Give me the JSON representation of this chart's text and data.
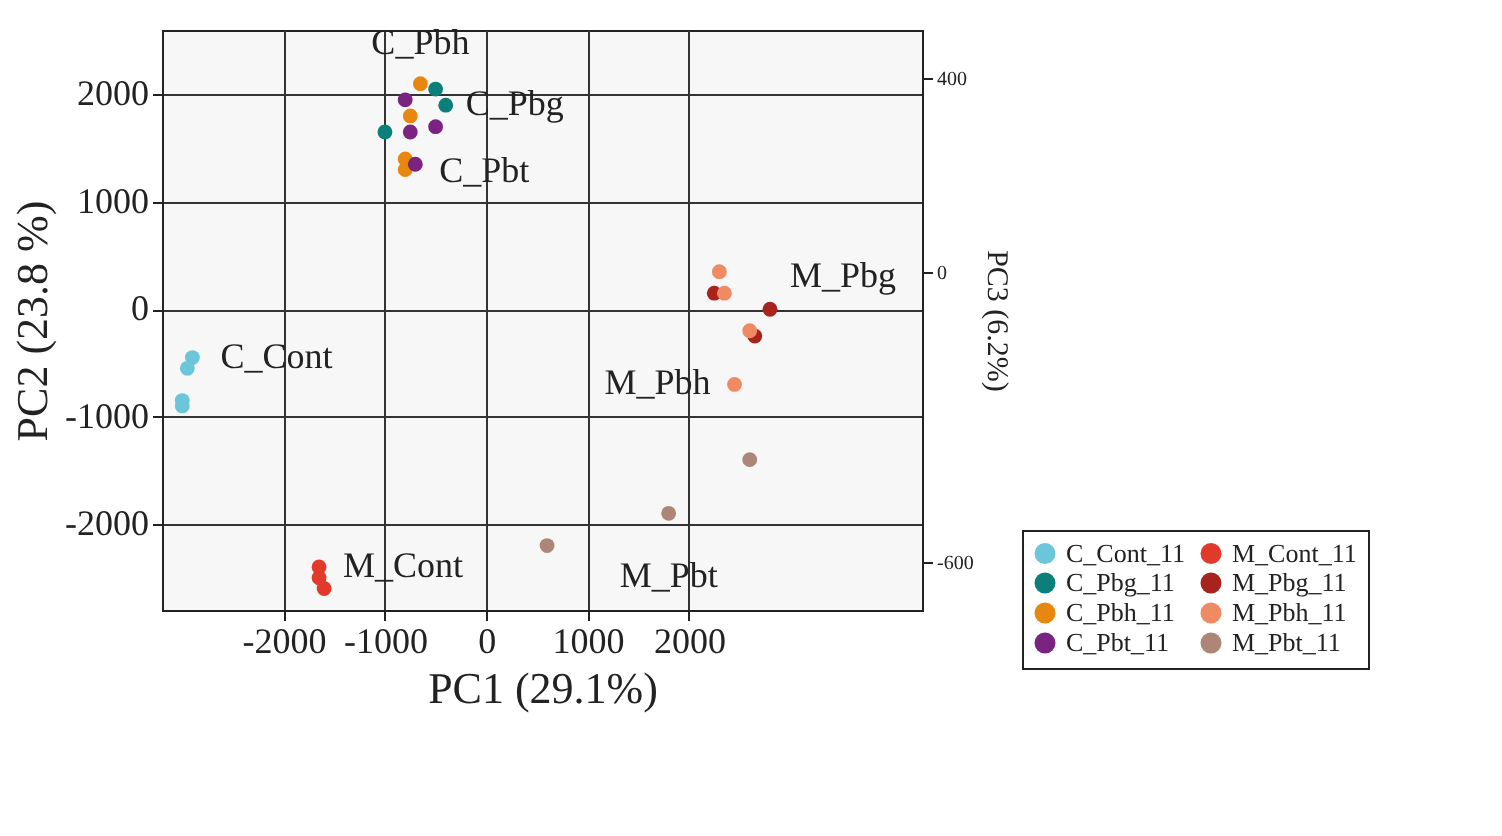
{
  "chart_data": {
    "type": "scatter",
    "xlabel": "PC1 (29.1%)",
    "ylabel": "PC2 (23.8 %)",
    "y2label": "PC3 (6.2%)",
    "xlim": [
      -3200,
      4300
    ],
    "ylim": [
      -2800,
      2600
    ],
    "xticks": [
      -2000,
      -1000,
      0,
      1000,
      2000
    ],
    "yticks": [
      -2000,
      -1000,
      0,
      1000,
      2000
    ],
    "y2lim": [
      -700,
      500
    ],
    "y2ticks": [
      -600,
      0,
      400
    ],
    "grid": true,
    "legend": "bottom right",
    "marker": "circle",
    "series": [
      {
        "name": "C_Cont_11",
        "color": "#6ac6d8",
        "x": [
          -2900,
          -2950,
          -3000,
          -3000
        ],
        "values": [
          -450,
          -550,
          -850,
          -900
        ]
      },
      {
        "name": "C_Pbg_11",
        "color": "#0d7f7a",
        "x": [
          -500,
          -400,
          -1000
        ],
        "values": [
          2050,
          1900,
          1650
        ]
      },
      {
        "name": "C_Pbh_11",
        "color": "#e8870f",
        "x": [
          -650,
          -750,
          -800,
          -800
        ],
        "values": [
          2100,
          1800,
          1400,
          1300
        ]
      },
      {
        "name": "C_Pbt_11",
        "color": "#7b2380",
        "x": [
          -800,
          -750,
          -500,
          -700
        ],
        "values": [
          1950,
          1650,
          1700,
          1350
        ]
      },
      {
        "name": "M_Cont_11",
        "color": "#e23a2a",
        "x": [
          -1650,
          -1650,
          -1600
        ],
        "values": [
          -2400,
          -2500,
          -2600
        ]
      },
      {
        "name": "M_Pbg_11",
        "color": "#a8231c",
        "x": [
          2800,
          2650,
          2250
        ],
        "values": [
          0,
          -250,
          150
        ]
      },
      {
        "name": "M_Pbh_11",
        "color": "#f08a62",
        "x": [
          2300,
          2350,
          2600,
          2450
        ],
        "values": [
          350,
          150,
          -200,
          -700
        ]
      },
      {
        "name": "M_Pbt_11",
        "color": "#ad8677",
        "x": [
          600,
          1800,
          2600
        ],
        "values": [
          -2200,
          -1900,
          -1400
        ]
      }
    ],
    "annotations": [
      {
        "text": "C_Pbh",
        "x": -650,
        "y": 2100
      },
      {
        "text": "C_Pbg",
        "x": -400,
        "y": 1900
      },
      {
        "text": "C_Pbt",
        "x": -700,
        "y": 1350
      },
      {
        "text": "C_Cont",
        "x": -2900,
        "y": -450
      },
      {
        "text": "M_Pbg",
        "x": 2800,
        "y": 0
      },
      {
        "text": "M_Pbh",
        "x": 2450,
        "y": -700
      },
      {
        "text": "M_Cont",
        "x": -1650,
        "y": -2400
      },
      {
        "text": "M_Pbt",
        "x": 1800,
        "y": -1900
      }
    ]
  }
}
